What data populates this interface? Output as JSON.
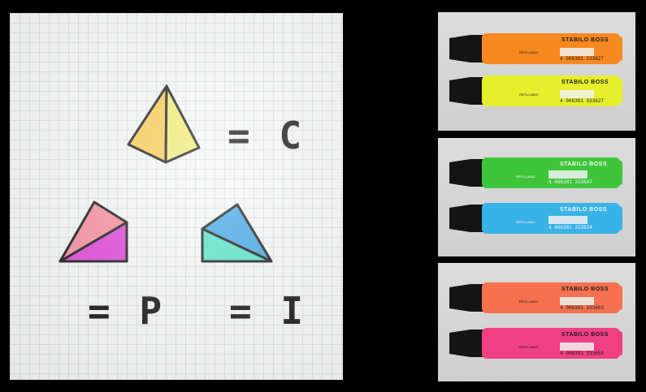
{
  "board": {
    "labels": {
      "c": "= C",
      "p": "= P",
      "i": "= I"
    }
  },
  "panels": [
    {
      "markers": [
        {
          "color": "#f7891f",
          "barcode": "4 006381 333627",
          "brand": "STABILO BOSS",
          "text_color": "#1a1a1a"
        },
        {
          "color": "#e6ef2c",
          "barcode": "4 006381 333627",
          "brand": "STABILO BOSS",
          "text_color": "#1a1a1a"
        }
      ]
    },
    {
      "markers": [
        {
          "color": "#3ec63a",
          "barcode": "4 006381 333647",
          "brand": "STABILO BOSS",
          "text_color": "#f5f5f5"
        },
        {
          "color": "#38b3e6",
          "barcode": "4 006381 333634",
          "brand": "STABILO BOSS",
          "text_color": "#f5f5f5"
        }
      ]
    },
    {
      "markers": [
        {
          "color": "#f5714f",
          "barcode": "4 006381 333603",
          "brand": "STABILO BOSS",
          "text_color": "#1a1a1a"
        },
        {
          "color": "#f03f82",
          "barcode": "4 006381 333658",
          "brand": "STABILO BOSS",
          "text_color": "#1a1a1a"
        }
      ]
    }
  ],
  "marker_small_text": "REFILLABLE"
}
